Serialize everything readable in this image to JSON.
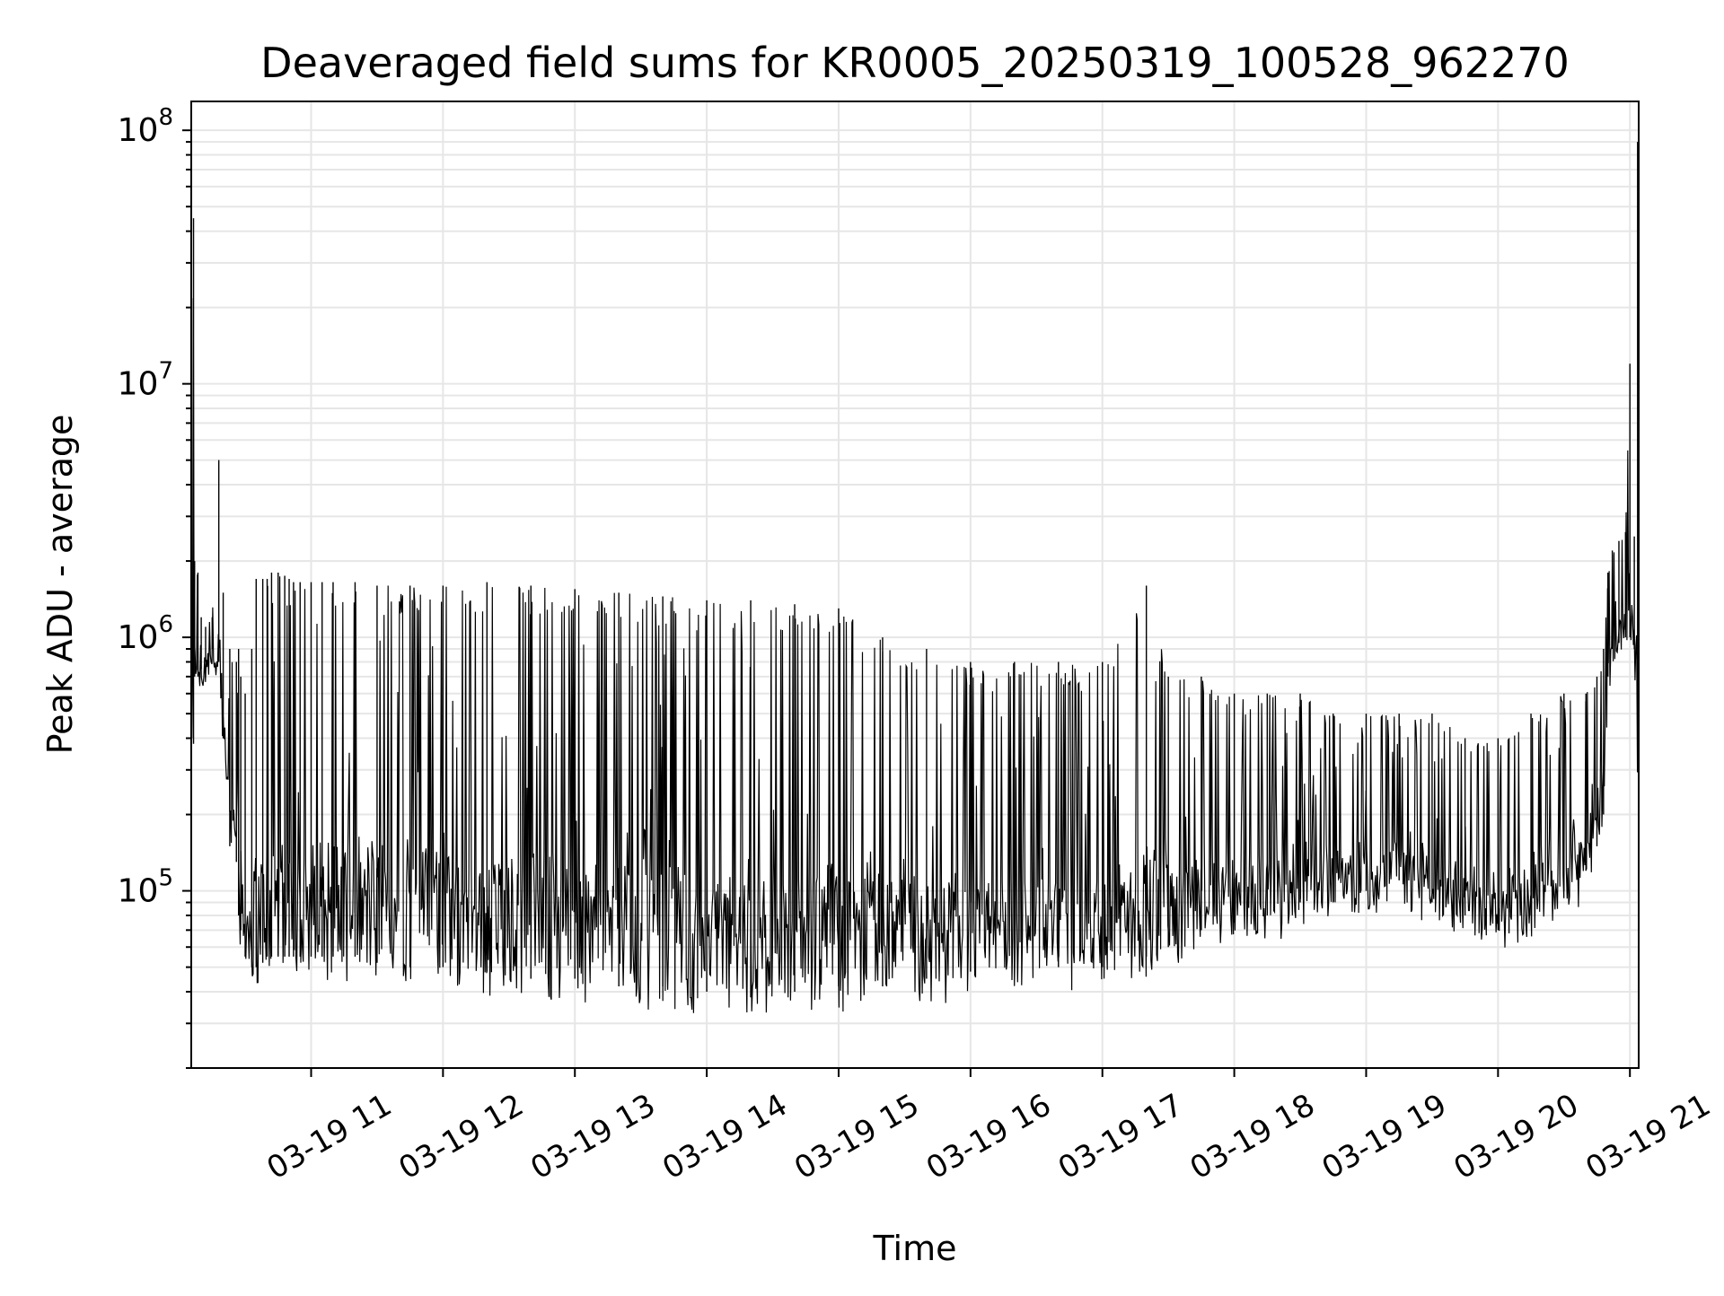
{
  "chart_data": {
    "type": "line",
    "title": "Deaveraged field sums for KR0005_20250319_100528_962270",
    "xlabel": "Time",
    "ylabel": "Peak ADU - average",
    "y_scale": "log",
    "ylim": [
      20000,
      130000000
    ],
    "xlim": [
      "2025-03-19T10:05:28",
      "2025-03-19T21:04:00"
    ],
    "x_ticks": [
      {
        "t": "2025-03-19T11:00",
        "label": "03-19 11"
      },
      {
        "t": "2025-03-19T12:00",
        "label": "03-19 12"
      },
      {
        "t": "2025-03-19T13:00",
        "label": "03-19 13"
      },
      {
        "t": "2025-03-19T14:00",
        "label": "03-19 14"
      },
      {
        "t": "2025-03-19T15:00",
        "label": "03-19 15"
      },
      {
        "t": "2025-03-19T16:00",
        "label": "03-19 16"
      },
      {
        "t": "2025-03-19T17:00",
        "label": "03-19 17"
      },
      {
        "t": "2025-03-19T18:00",
        "label": "03-19 18"
      },
      {
        "t": "2025-03-19T19:00",
        "label": "03-19 19"
      },
      {
        "t": "2025-03-19T20:00",
        "label": "03-19 20"
      },
      {
        "t": "2025-03-19T21:00",
        "label": "03-19 21"
      }
    ],
    "y_ticks": [
      {
        "value": 100000,
        "base": "10",
        "exp": "5"
      },
      {
        "value": 1000000,
        "base": "10",
        "exp": "6"
      },
      {
        "value": 10000000,
        "base": "10",
        "exp": "7"
      },
      {
        "value": 100000000,
        "base": "10",
        "exp": "8"
      }
    ],
    "grid": true,
    "line_color": "#000000",
    "grid_color": "#e6e6e6",
    "series": [
      {
        "x": [
          "2025-03-19T10:05:40",
          "2025-03-19T10:06:30",
          "2025-03-19T10:07:00",
          "2025-03-19T10:08:30",
          "2025-03-19T10:10:00",
          "2025-03-19T10:12:00",
          "2025-03-19T10:15:00",
          "2025-03-19T10:18:00",
          "2025-03-19T10:20:00",
          "2025-03-19T10:23:00",
          "2025-03-19T10:26:00",
          "2025-03-19T10:27:00",
          "2025-03-19T10:28:00",
          "2025-03-19T10:30:00",
          "2025-03-19T10:33:00",
          "2025-03-19T10:35:00",
          "2025-03-19T10:38:00",
          "2025-03-19T10:40:00",
          "2025-03-19T10:42:00",
          "2025-03-19T10:45:00",
          "2025-03-19T10:48:00",
          "2025-03-19T10:50:00",
          "2025-03-19T10:52:00",
          "2025-03-19T10:55:00",
          "2025-03-19T11:00:00",
          "2025-03-19T11:05:00",
          "2025-03-19T11:10:00",
          "2025-03-19T11:20:00",
          "2025-03-19T11:30:00",
          "2025-03-19T11:45:00",
          "2025-03-19T12:00:00",
          "2025-03-19T12:20:00",
          "2025-03-19T12:40:00",
          "2025-03-19T13:00:00",
          "2025-03-19T13:20:00",
          "2025-03-19T13:40:00",
          "2025-03-19T14:00:00",
          "2025-03-19T14:20:00",
          "2025-03-19T14:40:00",
          "2025-03-19T15:00:00",
          "2025-03-19T15:20:00",
          "2025-03-19T15:40:00",
          "2025-03-19T16:00:00",
          "2025-03-19T16:20:00",
          "2025-03-19T16:40:00",
          "2025-03-19T17:00:00",
          "2025-03-19T17:20:00",
          "2025-03-19T17:30:00",
          "2025-03-19T17:45:00",
          "2025-03-19T18:00:00",
          "2025-03-19T18:15:00",
          "2025-03-19T18:30:00",
          "2025-03-19T18:45:00",
          "2025-03-19T19:00:00",
          "2025-03-19T19:15:00",
          "2025-03-19T19:30:00",
          "2025-03-19T19:45:00",
          "2025-03-19T20:00:00",
          "2025-03-19T20:05:00",
          "2025-03-19T20:15:00",
          "2025-03-19T20:30:00",
          "2025-03-19T20:40:00",
          "2025-03-19T20:45:00",
          "2025-03-19T20:48:00",
          "2025-03-19T20:50:00",
          "2025-03-19T20:52:00",
          "2025-03-19T20:55:00",
          "2025-03-19T20:58:00",
          "2025-03-19T21:00:00",
          "2025-03-19T21:02:00",
          "2025-03-19T21:03:30"
        ],
        "lower": [
          400000,
          380000,
          700000,
          700000,
          750000,
          800000,
          900000,
          800000,
          400000,
          150000,
          130000,
          80000,
          70000,
          55000,
          50000,
          50000,
          52000,
          55000,
          55000,
          55000,
          55000,
          55000,
          55000,
          55000,
          55000,
          55000,
          55000,
          55000,
          52000,
          50000,
          50000,
          48000,
          45000,
          45000,
          42000,
          42000,
          40000,
          38000,
          40000,
          42000,
          42000,
          45000,
          48000,
          50000,
          50000,
          50000,
          55000,
          60000,
          70000,
          75000,
          80000,
          90000,
          90000,
          100000,
          110000,
          90000,
          80000,
          70000,
          68000,
          80000,
          100000,
          120000,
          150000,
          200000,
          700000,
          900000,
          950000,
          1000000,
          1000000,
          900000,
          300000
        ],
        "upper": [
          2000000,
          45000000,
          2000000,
          1800000,
          1200000,
          1100000,
          1200000,
          5000000,
          1500000,
          900000,
          800000,
          900000,
          700000,
          600000,
          900000,
          1700000,
          1700000,
          1700000,
          1800000,
          1800000,
          1750000,
          1700000,
          1650000,
          1650000,
          1650000,
          1650000,
          1650000,
          1650000,
          1600000,
          1600000,
          1600000,
          1650000,
          1600000,
          1550000,
          1500000,
          1450000,
          1400000,
          1400000,
          1350000,
          1300000,
          1000000,
          900000,
          800000,
          800000,
          800000,
          800000,
          1600000,
          700000,
          700000,
          600000,
          600000,
          600000,
          500000,
          500000,
          500000,
          500000,
          400000,
          400000,
          400000,
          500000,
          600000,
          600000,
          700000,
          900000,
          1800000,
          2200000,
          2400000,
          2600000,
          12000000,
          2500000,
          90000000
        ]
      }
    ]
  }
}
